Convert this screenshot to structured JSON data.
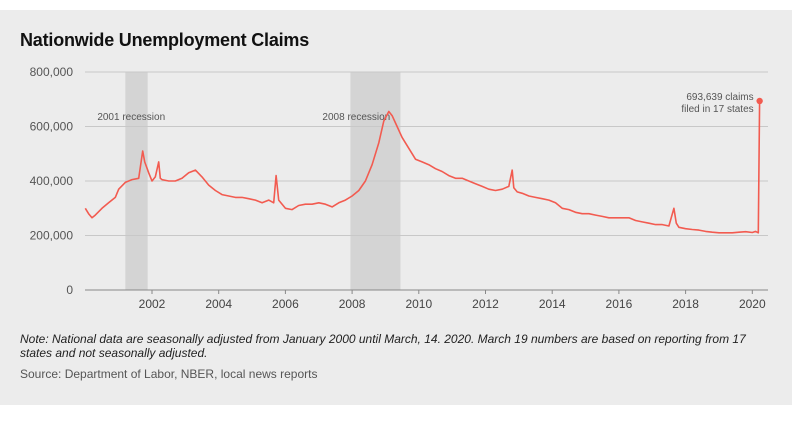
{
  "title": "Nationwide Unemployment Claims",
  "note": "Note: National data are seasonally adjusted from January 2000 until March, 14. 2020. March 19 numbers are based on reporting from 17 states and not seasonally adjusted.",
  "source": "Source: Department of Labor, NBER, local news reports",
  "colors": {
    "line": "#f25b50",
    "recession": "#d4d4d4",
    "panel": "#ececec",
    "grid": "#c8c8c8"
  },
  "chart_data": {
    "type": "line",
    "title": "Nationwide Unemployment Claims",
    "xlabel": "",
    "ylabel": "",
    "xlim": [
      2000.0,
      2020.3
    ],
    "ylim": [
      0,
      800000
    ],
    "grid": true,
    "y_ticks": [
      0,
      200000,
      400000,
      600000,
      800000
    ],
    "y_tick_labels": [
      "0",
      "200,000",
      "400,000",
      "600,000",
      "800,000"
    ],
    "x_ticks": [
      2002,
      2004,
      2006,
      2008,
      2010,
      2012,
      2014,
      2016,
      2018,
      2020
    ],
    "x_tick_labels": [
      "2002",
      "2004",
      "2006",
      "2008",
      "2010",
      "2012",
      "2014",
      "2016",
      "2018",
      "2020"
    ],
    "recessions": [
      {
        "label": "2001 recession",
        "start": 2001.2,
        "end": 2001.87
      },
      {
        "label": "2008 recession",
        "start": 2007.95,
        "end": 2009.45
      }
    ],
    "annotation": {
      "text_lines": [
        "693,639 claims",
        "filed in 17 states"
      ],
      "x": 2020.22,
      "y": 693639
    },
    "series": [
      {
        "x": [
          2000.0,
          2000.1,
          2000.2,
          2000.3,
          2000.5,
          2000.7,
          2000.9,
          2001.0,
          2001.2,
          2001.4,
          2001.6,
          2001.72,
          2001.78,
          2001.9,
          2002.0,
          2002.1,
          2002.2,
          2002.25,
          2002.3,
          2002.5,
          2002.7,
          2002.9,
          2003.1,
          2003.3,
          2003.5,
          2003.7,
          2003.9,
          2004.1,
          2004.3,
          2004.5,
          2004.7,
          2004.9,
          2005.1,
          2005.3,
          2005.5,
          2005.65,
          2005.72,
          2005.8,
          2006.0,
          2006.2,
          2006.4,
          2006.6,
          2006.8,
          2007.0,
          2007.2,
          2007.4,
          2007.6,
          2007.8,
          2008.0,
          2008.2,
          2008.4,
          2008.6,
          2008.8,
          2008.95,
          2009.1,
          2009.2,
          2009.35,
          2009.5,
          2009.7,
          2009.9,
          2010.1,
          2010.3,
          2010.5,
          2010.7,
          2010.9,
          2011.1,
          2011.3,
          2011.5,
          2011.7,
          2011.9,
          2012.1,
          2012.3,
          2012.5,
          2012.7,
          2012.8,
          2012.85,
          2012.95,
          2013.1,
          2013.3,
          2013.5,
          2013.7,
          2013.9,
          2014.1,
          2014.3,
          2014.5,
          2014.7,
          2014.9,
          2015.1,
          2015.3,
          2015.5,
          2015.7,
          2015.9,
          2016.1,
          2016.3,
          2016.5,
          2016.7,
          2016.9,
          2017.1,
          2017.3,
          2017.5,
          2017.65,
          2017.72,
          2017.8,
          2018.0,
          2018.2,
          2018.4,
          2018.6,
          2018.8,
          2019.0,
          2019.2,
          2019.4,
          2019.6,
          2019.8,
          2020.0,
          2020.1,
          2020.18,
          2020.22
        ],
        "y": [
          300000,
          280000,
          265000,
          275000,
          300000,
          320000,
          340000,
          370000,
          395000,
          405000,
          410000,
          510000,
          470000,
          430000,
          400000,
          415000,
          470000,
          410000,
          405000,
          400000,
          400000,
          410000,
          430000,
          440000,
          415000,
          385000,
          365000,
          350000,
          345000,
          340000,
          340000,
          335000,
          330000,
          320000,
          330000,
          320000,
          420000,
          330000,
          300000,
          295000,
          310000,
          315000,
          315000,
          320000,
          315000,
          305000,
          320000,
          330000,
          345000,
          365000,
          400000,
          460000,
          540000,
          620000,
          655000,
          640000,
          600000,
          560000,
          520000,
          480000,
          470000,
          460000,
          445000,
          435000,
          420000,
          410000,
          410000,
          400000,
          390000,
          380000,
          370000,
          365000,
          370000,
          380000,
          440000,
          375000,
          360000,
          355000,
          345000,
          340000,
          335000,
          330000,
          320000,
          300000,
          295000,
          285000,
          280000,
          280000,
          275000,
          270000,
          265000,
          265000,
          265000,
          265000,
          255000,
          250000,
          245000,
          240000,
          240000,
          235000,
          300000,
          245000,
          230000,
          225000,
          222000,
          220000,
          215000,
          212000,
          210000,
          210000,
          210000,
          212000,
          214000,
          211000,
          215000,
          210000,
          693639
        ]
      }
    ]
  }
}
